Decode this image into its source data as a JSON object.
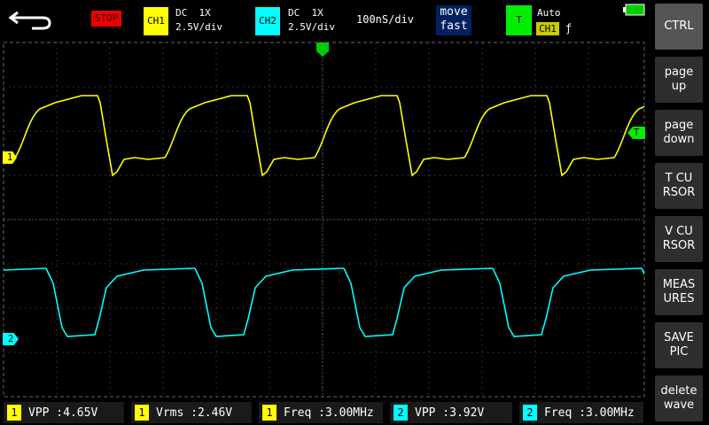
{
  "status": {
    "run_state": "STOP",
    "ch1": {
      "label": "CH1",
      "coupling": "DC  1X",
      "scale": "2.5V/div"
    },
    "ch2": {
      "label": "CH2",
      "coupling": "DC  1X",
      "scale": "2.5V/div"
    },
    "timebase": "100nS/div",
    "move_mode": [
      "move",
      "fast"
    ],
    "trigger": {
      "label": "T",
      "mode": "Auto",
      "source": "CH1",
      "edge": "ƒ"
    }
  },
  "markers": {
    "ch1": "1",
    "ch2": "2",
    "trigger": "T"
  },
  "buttons": [
    [
      "CTRL"
    ],
    [
      "page",
      "up"
    ],
    [
      "page",
      "down"
    ],
    [
      "T CU",
      "RSOR"
    ],
    [
      "V CU",
      "RSOR"
    ],
    [
      "MEAS",
      "URES"
    ],
    [
      "SAVE",
      "PIC"
    ],
    [
      "delete",
      "wave"
    ]
  ],
  "measurements": [
    {
      "channel": "1",
      "text": "VPP :4.65V"
    },
    {
      "channel": "1",
      "text": "Vrms :2.46V"
    },
    {
      "channel": "1",
      "text": "Freq :3.00MHz"
    },
    {
      "channel": "2",
      "text": "VPP :3.92V"
    },
    {
      "channel": "2",
      "text": "Freq :3.00MHz"
    }
  ]
}
